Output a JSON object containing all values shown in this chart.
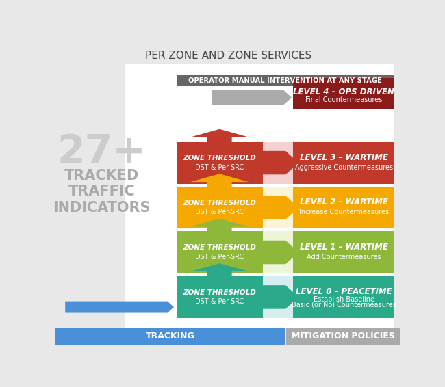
{
  "title": "PER ZONE AND ZONE SERVICES",
  "operator_banner": "OPERATOR MANUAL INTERVENTION AT ANY STAGE",
  "background_color": "#e8e8e8",
  "levels": [
    {
      "id": 0,
      "threshold_label": "ZONE THRESHOLD",
      "threshold_sub": "DST & Per-SRC",
      "level_label": "LEVEL 0 – PEACETIME",
      "level_sub": "Establish Baseline\nBasic (or No) Countermeasures",
      "threshold_color": "#2aaa8a",
      "level_color": "#2aaa8a",
      "arrow_color": "#2aaa8a",
      "light_color": "#d6eef0"
    },
    {
      "id": 1,
      "threshold_label": "ZONE THRESHOLD",
      "threshold_sub": "DST & Per-SRC",
      "level_label": "LEVEL 1 – WARTIME",
      "level_sub": "Add Countermeasures",
      "threshold_color": "#8db83a",
      "level_color": "#8db83a",
      "arrow_color": "#8db83a",
      "light_color": "#edf5d6"
    },
    {
      "id": 2,
      "threshold_label": "ZONE THRESHOLD",
      "threshold_sub": "DST & Per-SRC",
      "level_label": "LEVEL 2 – WARTIME",
      "level_sub": "Increase Countermeasures",
      "threshold_color": "#f5a800",
      "level_color": "#f5a800",
      "arrow_color": "#f5a800",
      "light_color": "#faf5d6"
    },
    {
      "id": 3,
      "threshold_label": "ZONE THRESHOLD",
      "threshold_sub": "DST & Per-SRC",
      "level_label": "LEVEL 3 – WARTIME",
      "level_sub": "Aggressive Countermeasures",
      "threshold_color": "#c0392b",
      "level_color": "#c0392b",
      "arrow_color": "#c0392b",
      "light_color": "#f5d0d0"
    }
  ],
  "level4": {
    "label": "LEVEL 4 – OPS DRIVEN",
    "sub": "Final Countermeasures",
    "color": "#8b1a1a"
  },
  "big_number": "27+",
  "big_text_lines": [
    "TRACKED",
    "TRAFFIC",
    "INDICATORS"
  ],
  "blue_arrow_color": "#4a90d9",
  "tracking_label": "TRACKING",
  "mitigation_label": "MITIGATION POLICIES",
  "tracking_color": "#4a90d9",
  "mitigation_color": "#aaaaaa",
  "gray_arrow_color": "#aaaaaa",
  "operator_banner_color": "#666666"
}
